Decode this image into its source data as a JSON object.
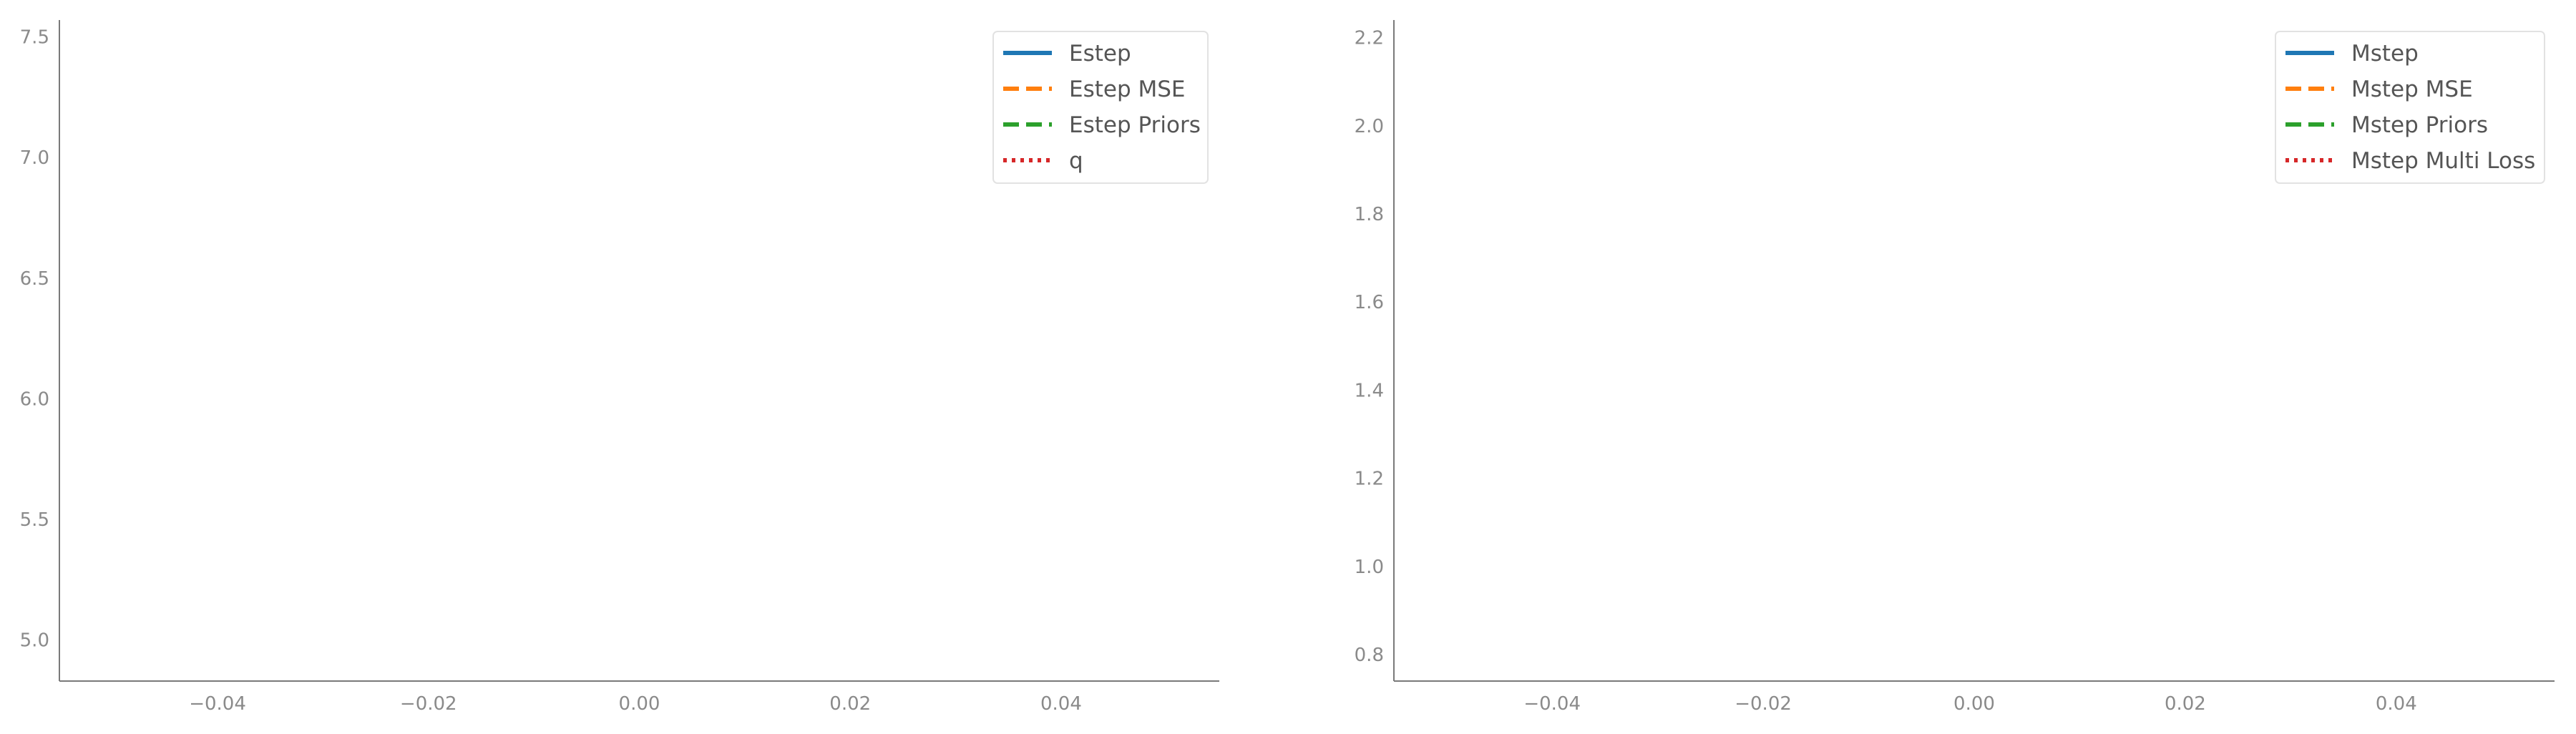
{
  "chart_data": [
    {
      "type": "line",
      "title": "",
      "xlabel": "",
      "ylabel": "",
      "xlim": [
        -0.055,
        0.055
      ],
      "ylim": [
        4.83,
        7.57
      ],
      "x_ticks": [
        "−0.04",
        "−0.02",
        "0.00",
        "0.02",
        "0.04"
      ],
      "x_tick_values": [
        -0.04,
        -0.02,
        0.0,
        0.02,
        0.04
      ],
      "y_ticks": [
        "5.0",
        "5.5",
        "6.0",
        "6.5",
        "7.0",
        "7.5"
      ],
      "y_tick_values": [
        5.0,
        5.5,
        6.0,
        6.5,
        7.0,
        7.5
      ],
      "grid": false,
      "legend_position": "top-right",
      "series": [
        {
          "name": "Estep",
          "color": "#1f77b4",
          "style": "solid",
          "x": [],
          "y": []
        },
        {
          "name": "Estep MSE",
          "color": "#ff7f0e",
          "style": "dashed",
          "x": [],
          "y": []
        },
        {
          "name": "Estep Priors",
          "color": "#2ca02c",
          "style": "dashed",
          "x": [],
          "y": []
        },
        {
          "name": "q",
          "color": "#d62728",
          "style": "dotted",
          "x": [],
          "y": []
        }
      ]
    },
    {
      "type": "line",
      "title": "",
      "xlabel": "",
      "ylabel": "",
      "xlim": [
        -0.055,
        0.055
      ],
      "ylim": [
        0.74,
        2.24
      ],
      "x_ticks": [
        "−0.04",
        "−0.02",
        "0.00",
        "0.02",
        "0.04"
      ],
      "x_tick_values": [
        -0.04,
        -0.02,
        0.0,
        0.02,
        0.04
      ],
      "y_ticks": [
        "0.8",
        "1.0",
        "1.2",
        "1.4",
        "1.6",
        "1.8",
        "2.0",
        "2.2"
      ],
      "y_tick_values": [
        0.8,
        1.0,
        1.2,
        1.4,
        1.6,
        1.8,
        2.0,
        2.2
      ],
      "grid": false,
      "legend_position": "top-right",
      "series": [
        {
          "name": "Mstep",
          "color": "#1f77b4",
          "style": "solid",
          "x": [],
          "y": []
        },
        {
          "name": "Mstep MSE",
          "color": "#ff7f0e",
          "style": "dashed",
          "x": [],
          "y": []
        },
        {
          "name": "Mstep Priors",
          "color": "#2ca02c",
          "style": "dashed",
          "x": [],
          "y": []
        },
        {
          "name": "Mstep Multi Loss",
          "color": "#d62728",
          "style": "dotted",
          "x": [],
          "y": []
        }
      ]
    }
  ]
}
